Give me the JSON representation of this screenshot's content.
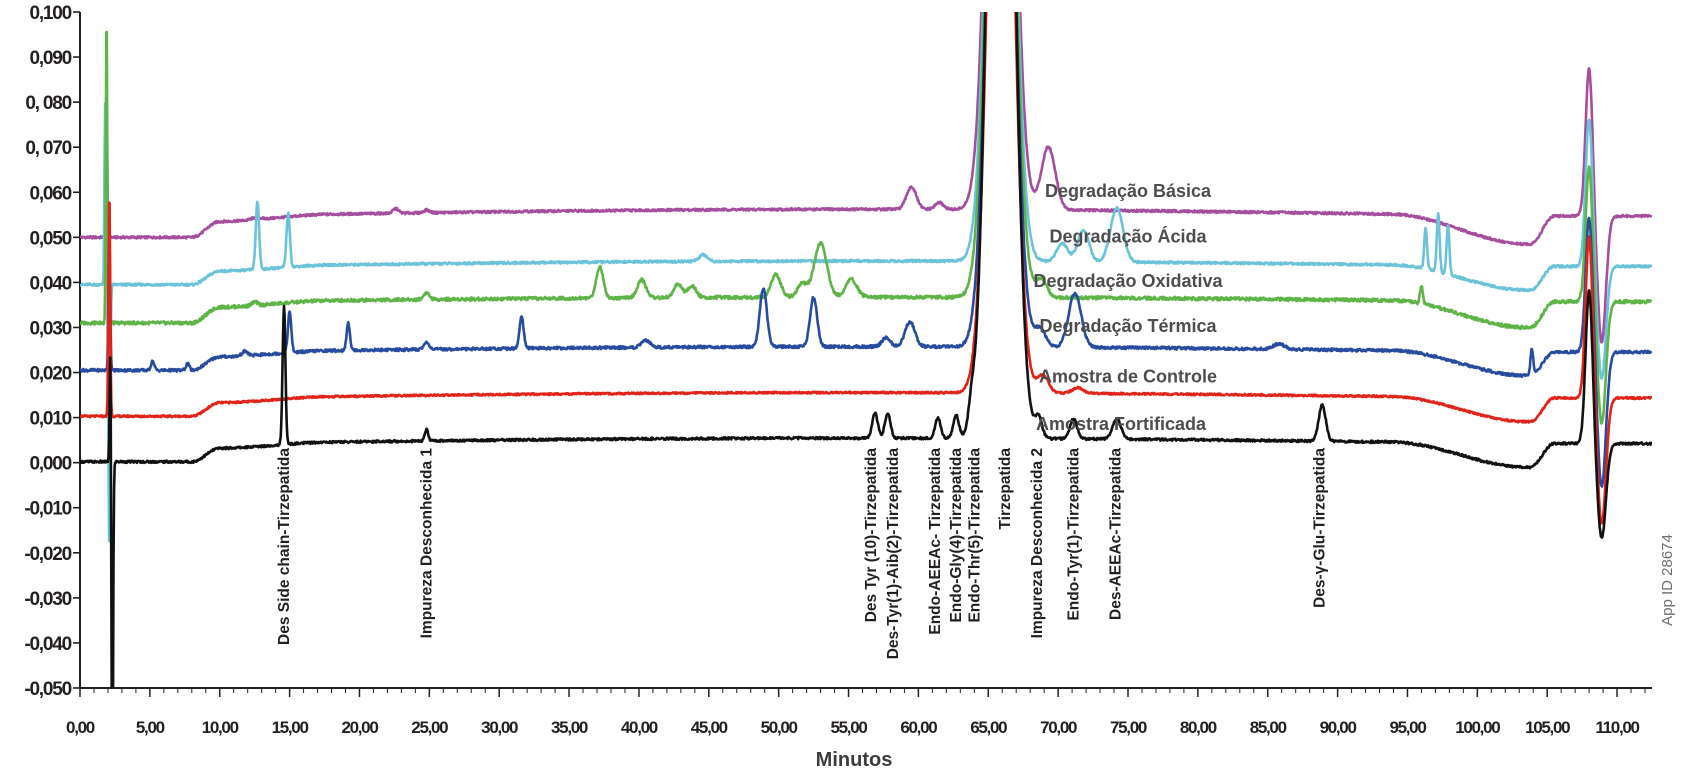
{
  "chart_data": {
    "type": "line",
    "title": "",
    "xlabel": "Minutos",
    "ylabel": "",
    "xlim": [
      0,
      112.5
    ],
    "ylim": [
      -0.05,
      0.1
    ],
    "grid": false,
    "x_ticks": [
      {
        "value": 0,
        "label": "0,00"
      },
      {
        "value": 5,
        "label": "5,00"
      },
      {
        "value": 10,
        "label": "10,00"
      },
      {
        "value": 15,
        "label": "15,00"
      },
      {
        "value": 20,
        "label": "20,00"
      },
      {
        "value": 25,
        "label": "25,00"
      },
      {
        "value": 30,
        "label": "30,00"
      },
      {
        "value": 35,
        "label": "35,00"
      },
      {
        "value": 40,
        "label": "40,00"
      },
      {
        "value": 45,
        "label": "45,00"
      },
      {
        "value": 50,
        "label": "50,00"
      },
      {
        "value": 55,
        "label": "55,00"
      },
      {
        "value": 60,
        "label": "60,00"
      },
      {
        "value": 65,
        "label": "65,00"
      },
      {
        "value": 70,
        "label": "70,00"
      },
      {
        "value": 75,
        "label": "75,00"
      },
      {
        "value": 80,
        "label": "80,00"
      },
      {
        "value": 85,
        "label": "85,00"
      },
      {
        "value": 90,
        "label": "90,00"
      },
      {
        "value": 95,
        "label": "95,00"
      },
      {
        "value": 100,
        "label": "100,00"
      },
      {
        "value": 105,
        "label": "105,00"
      },
      {
        "value": 110,
        "label": "110,00"
      }
    ],
    "y_ticks": [
      {
        "value": 0.1,
        "label": "0,100"
      },
      {
        "value": 0.09,
        "label": "0,090"
      },
      {
        "value": 0.08,
        "label": "0, 080"
      },
      {
        "value": 0.07,
        "label": "0, 070"
      },
      {
        "value": 0.06,
        "label": "0,060"
      },
      {
        "value": 0.05,
        "label": "0,050"
      },
      {
        "value": 0.04,
        "label": "0,040"
      },
      {
        "value": 0.03,
        "label": "0,030"
      },
      {
        "value": 0.02,
        "label": "0,020"
      },
      {
        "value": 0.01,
        "label": "0,010"
      },
      {
        "value": 0.0,
        "label": "0,000"
      },
      {
        "value": -0.01,
        "label": "-0,010"
      },
      {
        "value": -0.02,
        "label": "-0,020"
      },
      {
        "value": -0.03,
        "label": "-0,030"
      },
      {
        "value": -0.04,
        "label": "-0,040"
      },
      {
        "value": -0.05,
        "label": "-0,050"
      }
    ],
    "series": [
      {
        "name": "Degradação Básica",
        "color": "#a54e9e",
        "label_at": [
          75,
          0.059
        ],
        "offset": 0.05,
        "step_amp": 0.0035,
        "drift": 0.0015,
        "noise": 0.00025,
        "peaks": [
          [
            1.9,
            0.03,
            0.05
          ],
          [
            12.6,
            0.0005,
            0.3
          ],
          [
            22.6,
            0.001,
            0.2
          ],
          [
            24.8,
            0.0006,
            0.2
          ],
          [
            59.5,
            0.005,
            0.35
          ],
          [
            61.5,
            0.0015,
            0.3
          ],
          [
            65.9,
            0.2,
            0.8
          ],
          [
            69.3,
            0.014,
            0.5
          ],
          [
            108,
            0.033,
            0.25
          ],
          [
            108.9,
            -0.028,
            0.3
          ]
        ]
      },
      {
        "name": "Degradação Ácida",
        "color": "#6ac3d8",
        "label_at": [
          75,
          0.0488
        ],
        "offset": 0.0395,
        "step_amp": 0.003,
        "drift": 0.0012,
        "noise": 0.00025,
        "peaks": [
          [
            1.8,
            0.04,
            0.05
          ],
          [
            2.1,
            -0.06,
            0.06
          ],
          [
            12.7,
            0.015,
            0.12
          ],
          [
            14.9,
            0.012,
            0.12
          ],
          [
            44.6,
            0.0015,
            0.3
          ],
          [
            65.9,
            0.2,
            0.8
          ],
          [
            70.3,
            0.004,
            0.4
          ],
          [
            71.8,
            0.007,
            0.4
          ],
          [
            74.2,
            0.012,
            0.45
          ],
          [
            96.3,
            0.009,
            0.1
          ],
          [
            97.2,
            0.013,
            0.1
          ],
          [
            97.9,
            0.011,
            0.1
          ],
          [
            108,
            0.033,
            0.25
          ],
          [
            108.9,
            -0.025,
            0.3
          ]
        ]
      },
      {
        "name": "Degradação Oxidativa",
        "color": "#5fb447",
        "label_at": [
          75,
          0.039
        ],
        "offset": 0.031,
        "step_amp": 0.0035,
        "drift": 0.001,
        "noise": 0.00035,
        "peaks": [
          [
            1.9,
            0.07,
            0.05
          ],
          [
            12.5,
            0.0008,
            0.2
          ],
          [
            24.8,
            0.0015,
            0.2
          ],
          [
            37.2,
            0.007,
            0.25
          ],
          [
            40.2,
            0.004,
            0.3
          ],
          [
            42.8,
            0.003,
            0.3
          ],
          [
            43.8,
            0.0025,
            0.3
          ],
          [
            49.8,
            0.005,
            0.35
          ],
          [
            51.7,
            0.003,
            0.35
          ],
          [
            53,
            0.012,
            0.45
          ],
          [
            55.2,
            0.004,
            0.4
          ],
          [
            65.9,
            0.2,
            0.8
          ],
          [
            68.8,
            0.004,
            0.4
          ],
          [
            96,
            0.004,
            0.1
          ],
          [
            108,
            0.03,
            0.25
          ],
          [
            108.9,
            -0.027,
            0.3
          ]
        ]
      },
      {
        "name": "Degradação Térmica",
        "color": "#274b9f",
        "label_at": [
          75,
          0.029
        ],
        "offset": 0.0205,
        "step_amp": 0.003,
        "drift": 0.0012,
        "noise": 0.0003,
        "peaks": [
          [
            2.1,
            0.032,
            0.06
          ],
          [
            5.2,
            0.002,
            0.12
          ],
          [
            7.7,
            0.0015,
            0.12
          ],
          [
            11.8,
            0.001,
            0.2
          ],
          [
            15,
            0.009,
            0.12
          ],
          [
            19.2,
            0.006,
            0.12
          ],
          [
            24.8,
            0.0015,
            0.2
          ],
          [
            31.6,
            0.007,
            0.15
          ],
          [
            40.5,
            0.0015,
            0.3
          ],
          [
            48.9,
            0.013,
            0.25
          ],
          [
            52.5,
            0.011,
            0.25
          ],
          [
            57.7,
            0.002,
            0.3
          ],
          [
            59.4,
            0.0055,
            0.35
          ],
          [
            65.9,
            0.2,
            0.8
          ],
          [
            68.7,
            0.004,
            0.4
          ],
          [
            71.2,
            0.012,
            0.45
          ],
          [
            85.8,
            0.0012,
            0.4
          ],
          [
            103.9,
            0.006,
            0.1
          ],
          [
            108,
            0.03,
            0.25
          ],
          [
            108.9,
            -0.03,
            0.3
          ]
        ]
      },
      {
        "name": "Amostra de Controle",
        "color": "#e2231a",
        "label_at": [
          75,
          0.0178
        ],
        "offset": 0.0103,
        "step_amp": 0.003,
        "drift": 0.0012,
        "noise": 0.0002,
        "peaks": [
          [
            2.1,
            0.05,
            0.06
          ],
          [
            65.9,
            0.2,
            0.8
          ],
          [
            68.9,
            0.004,
            0.4
          ],
          [
            71.4,
            0.0012,
            0.4
          ],
          [
            108,
            0.036,
            0.25
          ],
          [
            108.9,
            -0.028,
            0.3
          ]
        ]
      },
      {
        "name": "Amostra Fortificada",
        "color": "#111111",
        "label_at": [
          74.5,
          0.0072
        ],
        "offset": 0.0002,
        "step_amp": 0.003,
        "drift": 0.0012,
        "noise": 0.00025,
        "peaks": [
          [
            2.2,
            0.036,
            0.06
          ],
          [
            2.3,
            -0.09,
            0.06
          ],
          [
            14.6,
            0.031,
            0.1
          ],
          [
            24.8,
            0.0025,
            0.12
          ],
          [
            56.9,
            0.0055,
            0.2
          ],
          [
            57.8,
            0.0055,
            0.2
          ],
          [
            61.4,
            0.0045,
            0.2
          ],
          [
            62.7,
            0.005,
            0.2
          ],
          [
            63.8,
            0.0045,
            0.2
          ],
          [
            65.9,
            0.25,
            0.8
          ],
          [
            68.6,
            0.0045,
            0.25
          ],
          [
            71.1,
            0.0045,
            0.25
          ],
          [
            74.2,
            0.0045,
            0.3
          ],
          [
            88.9,
            0.008,
            0.25
          ],
          [
            108,
            0.034,
            0.25
          ],
          [
            108.9,
            -0.021,
            0.3
          ]
        ]
      }
    ],
    "annotations": [
      {
        "x": 14.6,
        "label": "Des Side chain-Tirzepatida"
      },
      {
        "x": 24.8,
        "label": "Impureza Desconhecida 1"
      },
      {
        "x": 56.6,
        "label": "Des Tyr (10)-Tirzepatida"
      },
      {
        "x": 58.2,
        "label": "Des-Tyr(1)-Aib(2)-Tirzepatida"
      },
      {
        "x": 61.2,
        "label": "Endo-AEEAc- Tirzepatida"
      },
      {
        "x": 62.7,
        "label": "Endo-Gly(4)-Tirzepatida"
      },
      {
        "x": 64.0,
        "label": "Endo-Thr(5)-Tirzepatida"
      },
      {
        "x": 66.2,
        "label": "Tirzepatida"
      },
      {
        "x": 68.5,
        "label": "Impureza Desconhecida 2"
      },
      {
        "x": 71.1,
        "label": "Endo-Tyr(1)-Tirzepatida"
      },
      {
        "x": 74.1,
        "label": "Des-AEEAc-Tirzepatida"
      },
      {
        "x": 88.7,
        "label": "Des-γ-Glu-Tirzepatida"
      }
    ],
    "watermark": "App ID 28674"
  }
}
